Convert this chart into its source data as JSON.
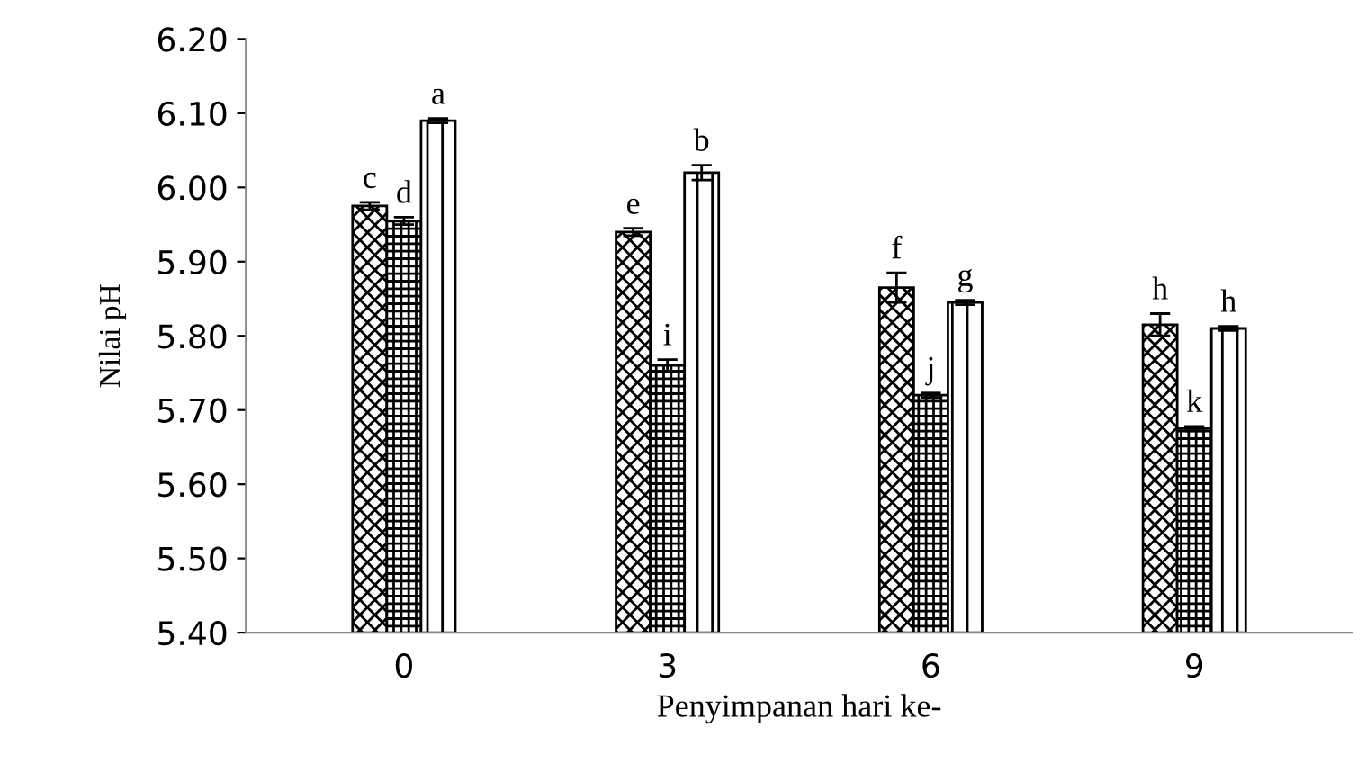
{
  "chart_data": {
    "type": "bar",
    "xlabel": "Penyimpanan hari ke-",
    "ylabel": "Nilai pH",
    "categories": [
      "0",
      "3",
      "6",
      "9"
    ],
    "series": [
      {
        "color": "#000000",
        "values": [
          5.975,
          5.94,
          5.865,
          5.815
        ],
        "errors": [
          0.005,
          0.005,
          0.02,
          0.015
        ],
        "value_labels": [
          "c",
          "e",
          "f",
          "h"
        ]
      },
      {
        "color": "#000000",
        "values": [
          5.955,
          5.76,
          5.72,
          5.675
        ],
        "errors": [
          0.005,
          0.008,
          0.003,
          0.003
        ],
        "value_labels": [
          "d",
          "i",
          "j",
          "k"
        ]
      },
      {
        "color": "#000000",
        "values": [
          6.09,
          6.02,
          5.845,
          5.81
        ],
        "errors": [
          0.003,
          0.01,
          0.003,
          0.003
        ],
        "value_labels": [
          "a",
          "b",
          "g",
          "h"
        ]
      }
    ],
    "ylim": [
      5.4,
      6.2
    ],
    "yticks": [
      {
        "value": 5.4,
        "label": "5.40"
      },
      {
        "value": 5.5,
        "label": "5.50"
      },
      {
        "value": 5.6,
        "label": "5.60"
      },
      {
        "value": 5.7,
        "label": "5.70"
      },
      {
        "value": 5.8,
        "label": "5.80"
      },
      {
        "value": 5.9,
        "label": "5.90"
      },
      {
        "value": 6.0,
        "label": "6.00"
      },
      {
        "value": 6.1,
        "label": "6.10"
      },
      {
        "value": 6.2,
        "label": "6.20"
      }
    ],
    "grid": false
  }
}
